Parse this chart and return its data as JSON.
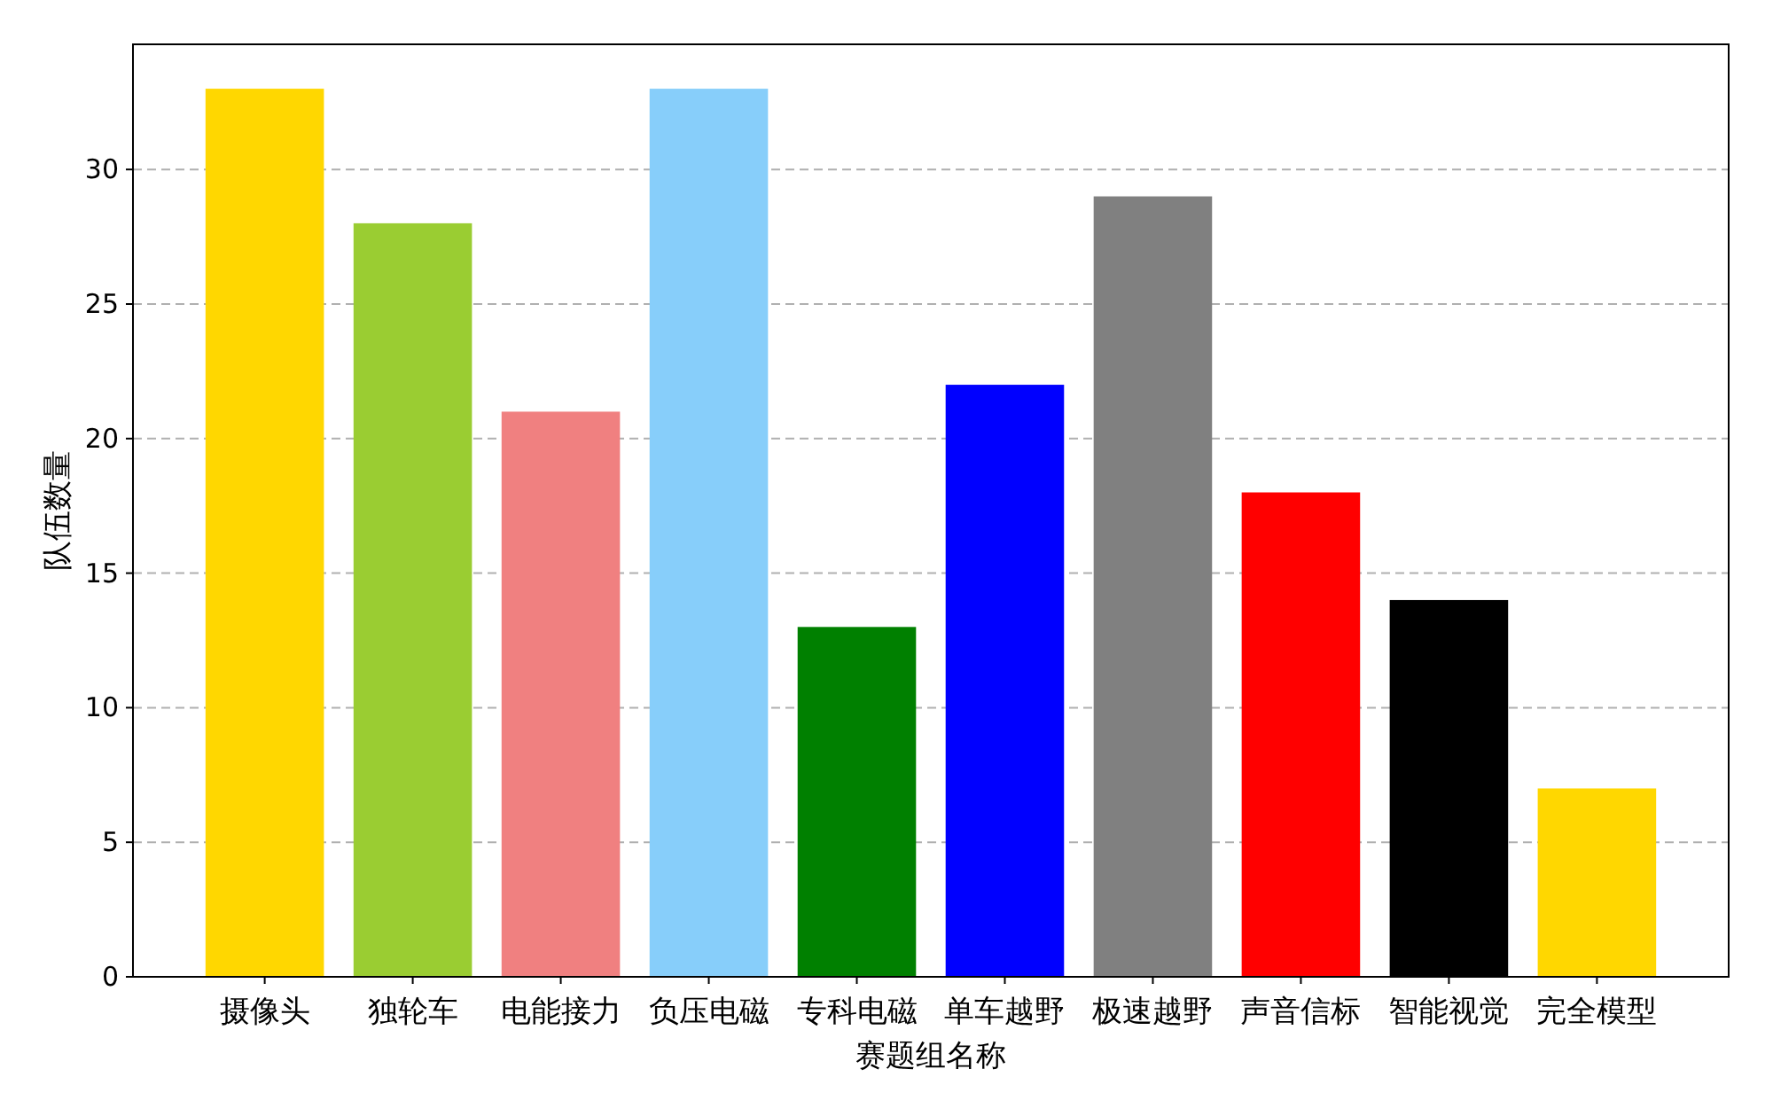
{
  "chart_data": {
    "type": "bar",
    "xlabel": "赛题组名称",
    "ylabel": "队伍数量",
    "categories": [
      "摄像头",
      "独轮车",
      "电能接力",
      "负压电磁",
      "专科电磁",
      "单车越野",
      "极速越野",
      "声音信标",
      "智能视觉",
      "完全模型"
    ],
    "values": [
      33,
      28,
      21,
      33,
      13,
      22,
      29,
      18,
      14,
      7
    ],
    "colors": [
      "#ffd700",
      "#9acd32",
      "#f08080",
      "#87cefa",
      "#008000",
      "#0000ff",
      "#808080",
      "#ff0000",
      "#000000",
      "#ffd700"
    ],
    "ylim": [
      0,
      34.65
    ],
    "yticks": [
      0,
      5,
      10,
      15,
      20,
      25,
      30
    ],
    "grid": "y"
  }
}
